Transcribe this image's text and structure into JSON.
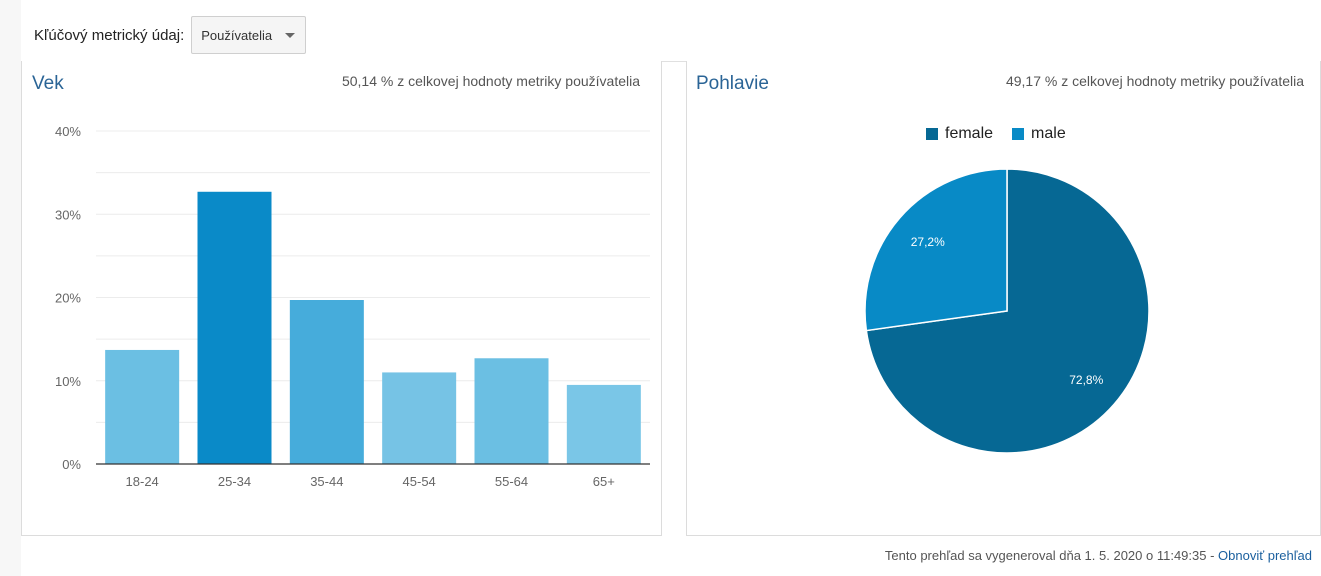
{
  "metric": {
    "label": "Kľúčový metrický údaj:",
    "selected": "Používatelia"
  },
  "age_panel": {
    "title": "Vek",
    "subtitle": "50,14 % z celkovej hodnoty metriky používatelia"
  },
  "gender_panel": {
    "title": "Pohlavie",
    "subtitle": "49,17 % z celkovej hodnoty metriky používatelia"
  },
  "footer": {
    "text": "Tento prehľad sa vygeneroval dňa 1. 5. 2020 o 11:49:35 -",
    "link": "Obnoviť prehľad"
  },
  "chart_data": [
    {
      "type": "bar",
      "title": "Vek",
      "categories": [
        "18-24",
        "25-34",
        "35-44",
        "45-54",
        "55-64",
        "65+"
      ],
      "values": [
        13.7,
        32.7,
        19.7,
        11.0,
        12.7,
        9.5
      ],
      "colors": [
        "#6bbfe3",
        "#0a8ac8",
        "#46acdb",
        "#76c3e5",
        "#6bbfe3",
        "#7ac6e7"
      ],
      "yticks": [
        "0%",
        "10%",
        "20%",
        "30%",
        "40%"
      ],
      "ylim": [
        0,
        40
      ],
      "grid": true
    },
    {
      "type": "pie",
      "title": "Pohlavie",
      "labels": [
        "female",
        "male"
      ],
      "values": [
        72.8,
        27.2
      ],
      "value_labels": [
        "72,8%",
        "27,2%"
      ],
      "colors": [
        "#066894",
        "#088ac6"
      ],
      "legend": "top"
    }
  ]
}
